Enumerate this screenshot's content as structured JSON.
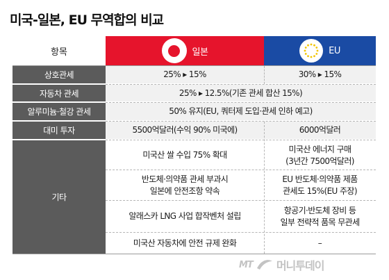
{
  "title": "미국-일본, EU 무역합의 비교",
  "header": {
    "label": "항목",
    "japan": "일본",
    "eu": "EU"
  },
  "colors": {
    "japan": "#e6142c",
    "eu": "#1a4ba4",
    "label_bg": "#5b5b5b"
  },
  "rows": [
    {
      "label": "상호관세",
      "japan": "25% ▸ 15%",
      "eu": "30% ▸ 15%"
    },
    {
      "label": "자동차 관세",
      "both": "25% ▸ 12.5%(기존 관세 합산 15%)"
    },
    {
      "label": "알루미늄·철강 관세",
      "both": "50% 유지(EU, 쿼터제 도입·관세 인하 예고)"
    },
    {
      "label": "대미 투자",
      "japan": "5500억달러(수익 90% 미국에)",
      "eu": "6000억달러"
    }
  ],
  "other": {
    "label": "기타",
    "items": [
      {
        "japan": "미국산 쌀 수입 75% 확대",
        "eu_line1": "미국산 에너지 구매",
        "eu_line2": "(3년간 7500억달러)"
      },
      {
        "japan_line1": "반도체·의약품 관세 부과시",
        "japan_line2": "일본에 안전조항 약속",
        "eu_line1": "EU 반도체·의약품 제품",
        "eu_line2": "관세도 15%(EU 주장)"
      },
      {
        "japan": "알래스카 LNG 사업 합작벤처 설립",
        "eu_line1": "항공기·반도체 장비 등",
        "eu_line2": "일부 전략적 품목 무관세"
      },
      {
        "japan": "미국산 자동차에 안전 규제 완화",
        "eu": "–"
      }
    ]
  },
  "watermark": {
    "mt": "MT",
    "brand": "머니투데이"
  },
  "icons": [
    "japan-flag-icon",
    "eu-flag-icon",
    "moneytoday-logo-icon"
  ]
}
